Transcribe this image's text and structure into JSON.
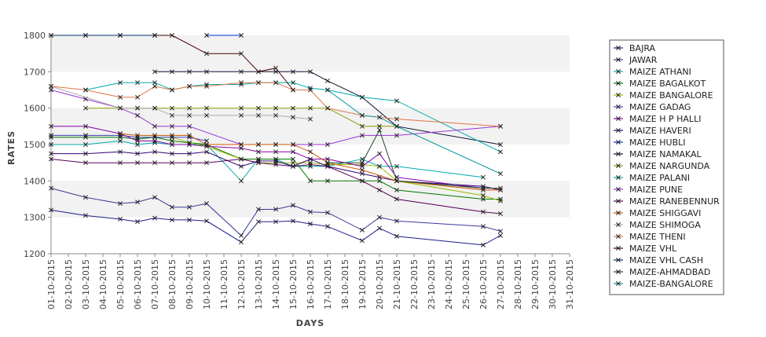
{
  "chart_data": {
    "type": "line",
    "xlabel": "DAYS",
    "ylabel": "RATES",
    "ylim": [
      1200,
      1800
    ],
    "yticks": [
      "1200",
      "1300",
      "1400",
      "1500",
      "1600",
      "1700",
      "1800"
    ],
    "x": [
      "01-10-2015",
      "02-10-2015",
      "03-10-2015",
      "04-10-2015",
      "05-10-2015",
      "06-10-2015",
      "07-10-2015",
      "08-10-2015",
      "09-10-2015",
      "10-10-2015",
      "11-10-2015",
      "12-10-2015",
      "13-10-2015",
      "14-10-2015",
      "15-10-2015",
      "16-10-2015",
      "17-10-2015",
      "18-10-2015",
      "19-10-2015",
      "20-10-2015",
      "21-10-2015",
      "22-10-2015",
      "23-10-2015",
      "24-10-2015",
      "25-10-2015",
      "26-10-2015",
      "27-10-2015",
      "28-10-2015",
      "29-10-2015",
      "30-10-2015",
      "31-10-2015"
    ],
    "grid": "alternating horizontal bands",
    "legend": "right",
    "series": [
      {
        "name": "BAJRA",
        "color": "#1a1a8c",
        "points": [
          [
            0,
            1320
          ],
          [
            2,
            1305
          ],
          [
            4,
            1295
          ],
          [
            5,
            1288
          ],
          [
            6,
            1298
          ],
          [
            7,
            1293
          ],
          [
            8,
            1293
          ],
          [
            9,
            1290
          ],
          [
            11,
            1232
          ],
          [
            12,
            1288
          ],
          [
            13,
            1288
          ],
          [
            14,
            1290
          ],
          [
            15,
            1282
          ],
          [
            16,
            1275
          ],
          [
            18,
            1236
          ],
          [
            19,
            1270
          ],
          [
            20,
            1248
          ],
          [
            25,
            1224
          ],
          [
            26,
            1250
          ]
        ]
      },
      {
        "name": "JAWAR",
        "color": "#3a3a9c",
        "points": [
          [
            0,
            1380
          ],
          [
            2,
            1355
          ],
          [
            4,
            1338
          ],
          [
            5,
            1342
          ],
          [
            6,
            1355
          ],
          [
            7,
            1328
          ],
          [
            8,
            1328
          ],
          [
            9,
            1338
          ],
          [
            11,
            1250
          ],
          [
            12,
            1322
          ],
          [
            13,
            1322
          ],
          [
            14,
            1333
          ],
          [
            15,
            1315
          ],
          [
            16,
            1313
          ],
          [
            18,
            1265
          ],
          [
            19,
            1300
          ],
          [
            20,
            1290
          ],
          [
            25,
            1275
          ],
          [
            26,
            1262
          ]
        ]
      },
      {
        "name": "MAIZE ATHANI",
        "color": "#00aaaa",
        "points": [
          [
            0,
            1500
          ],
          [
            2,
            1500
          ],
          [
            4,
            1510
          ],
          [
            5,
            1500
          ],
          [
            6,
            1505
          ],
          [
            7,
            1500
          ],
          [
            8,
            1500
          ],
          [
            9,
            1500
          ],
          [
            11,
            1400
          ],
          [
            12,
            1460
          ],
          [
            13,
            1460
          ],
          [
            14,
            1440
          ],
          [
            15,
            1440
          ],
          [
            16,
            1440
          ],
          [
            18,
            1460
          ],
          [
            19,
            1440
          ],
          [
            20,
            1440
          ],
          [
            25,
            1410
          ]
        ]
      },
      {
        "name": "MAIZE BAGALKOT",
        "color": "#007700",
        "points": [
          [
            0,
            1520
          ],
          [
            2,
            1520
          ],
          [
            4,
            1520
          ],
          [
            5,
            1515
          ],
          [
            6,
            1520
          ],
          [
            7,
            1510
          ],
          [
            8,
            1505
          ],
          [
            9,
            1500
          ],
          [
            11,
            1460
          ],
          [
            12,
            1460
          ],
          [
            13,
            1460
          ],
          [
            14,
            1460
          ],
          [
            15,
            1400
          ],
          [
            16,
            1400
          ],
          [
            18,
            1400
          ],
          [
            19,
            1400
          ],
          [
            20,
            1375
          ],
          [
            25,
            1350
          ],
          [
            26,
            1350
          ]
        ]
      },
      {
        "name": "MAIZE BANGALORE",
        "color": "#99bb00",
        "points": [
          [
            0,
            1525
          ],
          [
            2,
            1525
          ],
          [
            4,
            1525
          ],
          [
            5,
            1520
          ],
          [
            6,
            1520
          ],
          [
            7,
            1520
          ],
          [
            8,
            1505
          ],
          [
            9,
            1495
          ],
          [
            11,
            1460
          ],
          [
            12,
            1450
          ],
          [
            13,
            1450
          ],
          [
            14,
            1450
          ],
          [
            15,
            1450
          ],
          [
            16,
            1445
          ],
          [
            18,
            1445
          ],
          [
            19,
            1440
          ],
          [
            20,
            1400
          ],
          [
            25,
            1360
          ],
          [
            26,
            1345
          ]
        ]
      },
      {
        "name": "MAIZE GADAG",
        "color": "#4444cc",
        "points": [
          [
            0,
            1525
          ],
          [
            2,
            1525
          ],
          [
            4,
            1525
          ],
          [
            5,
            1520
          ],
          [
            6,
            1520
          ],
          [
            7,
            1520
          ],
          [
            8,
            1520
          ],
          [
            9,
            1510
          ]
        ]
      },
      {
        "name": "MAIZE H P HALLI",
        "color": "#8800aa",
        "points": [
          [
            0,
            1550
          ],
          [
            2,
            1550
          ],
          [
            4,
            1530
          ],
          [
            5,
            1510
          ],
          [
            6,
            1510
          ],
          [
            7,
            1500
          ],
          [
            8,
            1500
          ],
          [
            9,
            1495
          ],
          [
            11,
            1490
          ],
          [
            12,
            1480
          ],
          [
            13,
            1480
          ],
          [
            14,
            1480
          ],
          [
            15,
            1460
          ],
          [
            16,
            1460
          ],
          [
            18,
            1440
          ],
          [
            19,
            1475
          ],
          [
            20,
            1410
          ],
          [
            25,
            1380
          ]
        ]
      },
      {
        "name": "MAIZE HAVERI",
        "color": "#330077",
        "points": [
          [
            0,
            1475
          ],
          [
            2,
            1475
          ],
          [
            4,
            1480
          ],
          [
            5,
            1475
          ],
          [
            6,
            1480
          ],
          [
            7,
            1475
          ],
          [
            8,
            1475
          ],
          [
            9,
            1480
          ],
          [
            11,
            1440
          ],
          [
            12,
            1455
          ],
          [
            13,
            1455
          ],
          [
            14,
            1440
          ],
          [
            15,
            1460
          ],
          [
            16,
            1440
          ],
          [
            18,
            1420
          ],
          [
            19,
            1410
          ],
          [
            20,
            1400
          ],
          [
            25,
            1385
          ],
          [
            26,
            1375
          ]
        ]
      },
      {
        "name": "MAIZE HUBLI",
        "color": "#0033cc",
        "points": [
          [
            9,
            1800
          ],
          [
            11,
            1800
          ]
        ]
      },
      {
        "name": "MAIZE NAMAKAL",
        "color": "#111133",
        "points": [
          [
            6,
            1700
          ],
          [
            7,
            1700
          ],
          [
            8,
            1700
          ],
          [
            9,
            1700
          ],
          [
            11,
            1700
          ],
          [
            12,
            1700
          ],
          [
            13,
            1700
          ],
          [
            14,
            1700
          ],
          [
            15,
            1700
          ],
          [
            16,
            1675
          ],
          [
            18,
            1630
          ],
          [
            20,
            1550
          ],
          [
            26,
            1500
          ]
        ]
      },
      {
        "name": "MAIZE NARGUNDA",
        "color": "#889900",
        "points": [
          [
            2,
            1600
          ],
          [
            4,
            1600
          ],
          [
            5,
            1600
          ],
          [
            6,
            1600
          ],
          [
            7,
            1600
          ],
          [
            8,
            1600
          ],
          [
            9,
            1600
          ],
          [
            11,
            1600
          ],
          [
            12,
            1600
          ],
          [
            13,
            1600
          ],
          [
            14,
            1600
          ],
          [
            15,
            1600
          ],
          [
            16,
            1600
          ],
          [
            18,
            1550
          ],
          [
            19,
            1550
          ],
          [
            20,
            1550
          ]
        ]
      },
      {
        "name": "MAIZE PALANI",
        "color": "#00aaaa",
        "points": [
          [
            2,
            1650
          ],
          [
            4,
            1670
          ],
          [
            5,
            1670
          ],
          [
            6,
            1670
          ],
          [
            7,
            1650
          ],
          [
            8,
            1660
          ],
          [
            9,
            1665
          ],
          [
            11,
            1665
          ],
          [
            12,
            1670
          ],
          [
            13,
            1670
          ],
          [
            14,
            1670
          ],
          [
            15,
            1655
          ],
          [
            16,
            1650
          ],
          [
            18,
            1630
          ],
          [
            20,
            1620
          ],
          [
            26,
            1480
          ]
        ]
      },
      {
        "name": "MAIZE PUNE",
        "color": "#9933dd",
        "points": [
          [
            0,
            1650
          ],
          [
            2,
            1625
          ],
          [
            4,
            1600
          ],
          [
            5,
            1580
          ],
          [
            6,
            1550
          ],
          [
            7,
            1550
          ],
          [
            8,
            1550
          ],
          [
            11,
            1500
          ],
          [
            12,
            1500
          ],
          [
            13,
            1500
          ],
          [
            14,
            1500
          ],
          [
            15,
            1500
          ],
          [
            16,
            1500
          ],
          [
            18,
            1525
          ],
          [
            20,
            1525
          ],
          [
            26,
            1550
          ]
        ]
      },
      {
        "name": "MAIZE RANEBENNUR",
        "color": "#550055",
        "points": [
          [
            0,
            1460
          ],
          [
            2,
            1450
          ],
          [
            4,
            1450
          ],
          [
            5,
            1450
          ],
          [
            6,
            1450
          ],
          [
            7,
            1450
          ],
          [
            8,
            1450
          ],
          [
            9,
            1450
          ],
          [
            11,
            1460
          ],
          [
            12,
            1450
          ],
          [
            13,
            1445
          ],
          [
            14,
            1440
          ],
          [
            15,
            1445
          ],
          [
            16,
            1440
          ],
          [
            18,
            1400
          ],
          [
            19,
            1375
          ],
          [
            20,
            1350
          ],
          [
            25,
            1315
          ],
          [
            26,
            1310
          ]
        ]
      },
      {
        "name": "MAIZE SHIGGAVI",
        "color": "#cc5500",
        "points": [
          [
            4,
            1530
          ],
          [
            5,
            1525
          ],
          [
            6,
            1525
          ],
          [
            7,
            1525
          ],
          [
            8,
            1525
          ],
          [
            9,
            1500
          ],
          [
            11,
            1500
          ],
          [
            12,
            1500
          ],
          [
            13,
            1500
          ],
          [
            14,
            1500
          ],
          [
            15,
            1480
          ],
          [
            16,
            1450
          ],
          [
            18,
            1430
          ],
          [
            20,
            1400
          ],
          [
            25,
            1375
          ],
          [
            26,
            1375
          ]
        ]
      },
      {
        "name": "MAIZE SHIMOGA",
        "color": "#aaaaaa",
        "points": [
          [
            0,
            1660
          ],
          [
            4,
            1600
          ],
          [
            5,
            1600
          ],
          [
            6,
            1600
          ],
          [
            7,
            1580
          ],
          [
            8,
            1580
          ],
          [
            9,
            1580
          ],
          [
            11,
            1580
          ],
          [
            12,
            1580
          ],
          [
            13,
            1580
          ],
          [
            14,
            1575
          ],
          [
            15,
            1570
          ]
        ]
      },
      {
        "name": "MAIZE THENI",
        "color": "#dd7744",
        "points": [
          [
            0,
            1660
          ],
          [
            2,
            1650
          ],
          [
            4,
            1630
          ],
          [
            5,
            1630
          ],
          [
            6,
            1660
          ],
          [
            7,
            1650
          ],
          [
            8,
            1660
          ],
          [
            9,
            1660
          ],
          [
            11,
            1670
          ],
          [
            12,
            1670
          ],
          [
            13,
            1670
          ],
          [
            14,
            1650
          ],
          [
            15,
            1650
          ],
          [
            16,
            1600
          ],
          [
            18,
            1580
          ],
          [
            20,
            1570
          ],
          [
            26,
            1550
          ]
        ]
      },
      {
        "name": "MAIZE VHL",
        "color": "#440000",
        "points": [
          [
            0,
            1800
          ],
          [
            2,
            1800
          ],
          [
            4,
            1800
          ],
          [
            6,
            1800
          ],
          [
            7,
            1800
          ],
          [
            9,
            1750
          ],
          [
            11,
            1750
          ],
          [
            12,
            1700
          ],
          [
            13,
            1710
          ],
          [
            14,
            1650
          ]
        ]
      },
      {
        "name": "MAIZE VHL CASH",
        "color": "#003366",
        "points": [
          [
            0,
            1800
          ],
          [
            2,
            1800
          ],
          [
            4,
            1800
          ],
          [
            6,
            1800
          ]
        ]
      },
      {
        "name": "MAIZE-AHMADBAD",
        "color": "#224422",
        "points": [
          [
            16,
            1450
          ],
          [
            18,
            1450
          ],
          [
            19,
            1540
          ],
          [
            20,
            1400
          ],
          [
            25,
            1380
          ],
          [
            26,
            1380
          ]
        ]
      },
      {
        "name": "MAIZE-BANGALORE",
        "color": "#009999",
        "points": [
          [
            16,
            1650
          ],
          [
            18,
            1580
          ],
          [
            19,
            1575
          ],
          [
            20,
            1550
          ],
          [
            26,
            1420
          ]
        ]
      }
    ]
  }
}
